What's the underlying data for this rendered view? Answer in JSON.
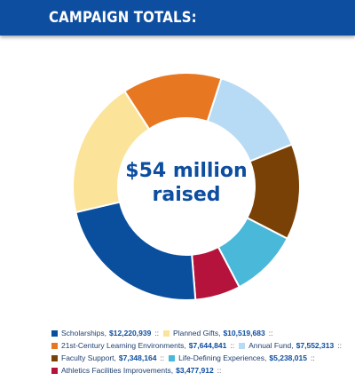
{
  "header": {
    "title": "CAMPAIGN TOTALS:"
  },
  "center": {
    "line1": "$54 million",
    "line2": "raised"
  },
  "legend": {
    "separator": "::",
    "rows": [
      [
        0,
        1
      ],
      [
        2,
        3
      ],
      [
        4,
        5
      ],
      [
        6
      ]
    ]
  },
  "chart_data": {
    "type": "pie",
    "style": "donut",
    "title": "CAMPAIGN TOTALS:",
    "center_label": "$54 million raised",
    "legend_position": "bottom",
    "slices": [
      {
        "name": "Scholarships",
        "display_value": "$12,220,939",
        "value": 12220939,
        "color": "#0a4f9e"
      },
      {
        "name": "Planned Gifts",
        "display_value": "$10,519,683",
        "value": 10519683,
        "color": "#fbe49a"
      },
      {
        "name": "21st-Century Learning Environments",
        "display_value": "$7,644,841",
        "value": 7644841,
        "color": "#e87722"
      },
      {
        "name": "Annual Fund",
        "display_value": "$7,552,313",
        "value": 7552313,
        "color": "#b8dbf5"
      },
      {
        "name": "Faculty Support",
        "display_value": "$7,348,164",
        "value": 7348164,
        "color": "#7a4106"
      },
      {
        "name": "Life-Defining Experiences",
        "display_value": "$5,238,015",
        "value": 5238015,
        "color": "#4ab8d8"
      },
      {
        "name": "Athletics Facilities Improvements",
        "display_value": "$3,477,912",
        "value": 3477912,
        "color": "#b5123c"
      }
    ],
    "slice_order_clockwise_from_top": [
      2,
      3,
      4,
      5,
      6,
      0,
      1
    ]
  }
}
